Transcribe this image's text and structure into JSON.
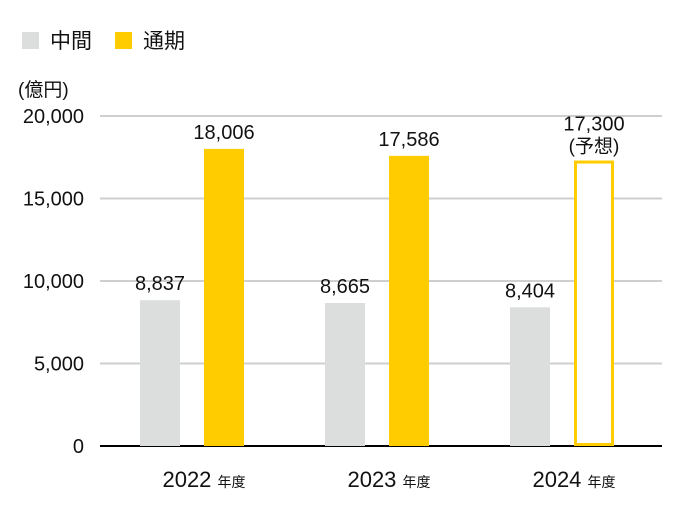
{
  "chart_data": {
    "type": "bar",
    "unit_label": "(億円)",
    "categories": [
      "2022",
      "2023",
      "2024"
    ],
    "category_suffix": "年度",
    "series": [
      {
        "name": "中間",
        "color": "#dcdddd",
        "values": [
          8837,
          8665,
          8404
        ],
        "labels": [
          "8,837",
          "8,665",
          "8,404"
        ]
      },
      {
        "name": "通期",
        "color": "#ffcc00",
        "values": [
          18006,
          17586,
          17300
        ],
        "labels": [
          "18,006",
          "17,586",
          "17,300"
        ]
      }
    ],
    "forecast_note": "(予想)",
    "forecast_category": "2024",
    "ylim": [
      0,
      20000
    ],
    "yticks": [
      0,
      5000,
      10000,
      15000,
      20000
    ],
    "ytick_labels": [
      "0",
      "5,000",
      "10,000",
      "15,000",
      "20,000"
    ],
    "grid": true,
    "legend_position": "top-left"
  }
}
